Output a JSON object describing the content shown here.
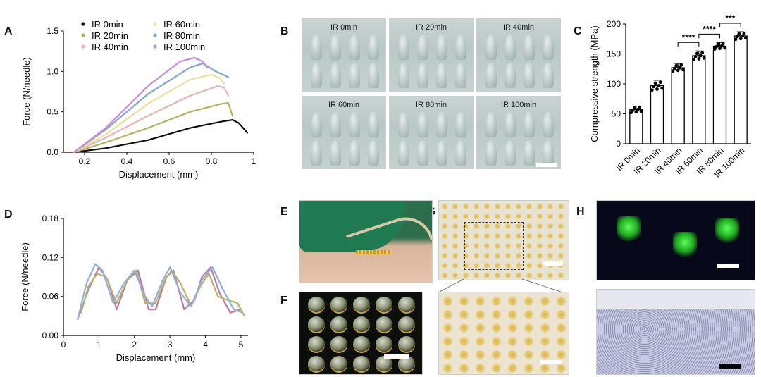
{
  "panels": {
    "A": "A",
    "B": "B",
    "C": "C",
    "D": "D",
    "E": "E",
    "F": "F",
    "G": "G",
    "H": "H"
  },
  "colors": {
    "IR 0min": "#111111",
    "IR 20min": "#b7b35c",
    "IR 40min": "#e9b3b3",
    "IR 60min": "#e9e09a",
    "IR 80min": "#7ea8d8",
    "IR 100min": "#c88bd8",
    "D1": "#c07aa6",
    "D2": "#b9b36a",
    "D3": "#8fb0d8"
  },
  "micro_labels": [
    "IR 0min",
    "IR 20min",
    "IR 40min",
    "IR 60min",
    "IR 80min",
    "IR 100min"
  ],
  "chart_data": [
    {
      "id": "A",
      "type": "line",
      "xlabel": "Displacement (mm)",
      "ylabel": "Force (N/needle)",
      "xlim": [
        0.1,
        1.0
      ],
      "ylim": [
        0.0,
        1.5
      ],
      "xticks": [
        0.2,
        0.4,
        0.6,
        0.8,
        1.0
      ],
      "yticks": [
        0.0,
        0.5,
        1.0,
        1.5
      ],
      "legend": "top-left, two columns",
      "series": [
        {
          "name": "IR 0min",
          "color_key": "IR 0min",
          "x": [
            0.15,
            0.3,
            0.5,
            0.7,
            0.85,
            0.9,
            0.93,
            0.97
          ],
          "y": [
            0.0,
            0.05,
            0.15,
            0.3,
            0.38,
            0.4,
            0.36,
            0.24
          ]
        },
        {
          "name": "IR 20min",
          "color_key": "IR 20min",
          "x": [
            0.15,
            0.3,
            0.5,
            0.7,
            0.85,
            0.88,
            0.9
          ],
          "y": [
            0.0,
            0.12,
            0.3,
            0.5,
            0.6,
            0.61,
            0.45
          ]
        },
        {
          "name": "IR 40min",
          "color_key": "IR 40min",
          "x": [
            0.15,
            0.3,
            0.5,
            0.7,
            0.83,
            0.86,
            0.88
          ],
          "y": [
            0.0,
            0.18,
            0.45,
            0.7,
            0.82,
            0.8,
            0.7
          ]
        },
        {
          "name": "IR 60min",
          "color_key": "IR 60min",
          "x": [
            0.15,
            0.3,
            0.5,
            0.7,
            0.8,
            0.84,
            0.86
          ],
          "y": [
            0.0,
            0.22,
            0.6,
            0.9,
            0.96,
            0.92,
            0.85
          ]
        },
        {
          "name": "IR 80min",
          "color_key": "IR 80min",
          "x": [
            0.15,
            0.3,
            0.5,
            0.7,
            0.76,
            0.82,
            0.88
          ],
          "y": [
            0.0,
            0.28,
            0.72,
            1.05,
            1.1,
            1.0,
            0.93
          ]
        },
        {
          "name": "IR 100min",
          "color_key": "IR 100min",
          "x": [
            0.15,
            0.3,
            0.5,
            0.65,
            0.72,
            0.76,
            0.78
          ],
          "y": [
            0.0,
            0.3,
            0.82,
            1.12,
            1.17,
            1.12,
            1.05
          ]
        }
      ]
    },
    {
      "id": "C",
      "type": "bar",
      "ylabel": "Compressive strength (MPa)",
      "categories": [
        "IR 0min",
        "IR 20min",
        "IR 40min",
        "IR 60min",
        "IR 80min",
        "IR 100min"
      ],
      "values": [
        57,
        97,
        127,
        147,
        163,
        180
      ],
      "errors": [
        6,
        9,
        7,
        8,
        6,
        7
      ],
      "ylim": [
        0,
        200
      ],
      "yticks": [
        0,
        50,
        100,
        150,
        200
      ],
      "significance": [
        {
          "from": 2,
          "to": 3,
          "label": "****"
        },
        {
          "from": 3,
          "to": 4,
          "label": "****"
        },
        {
          "from": 4,
          "to": 5,
          "label": "***"
        }
      ]
    },
    {
      "id": "D",
      "type": "line",
      "xlabel": "Displacement (mm)",
      "ylabel": "Force (N/needle)",
      "xlim": [
        0,
        5.2
      ],
      "ylim": [
        0.0,
        0.18
      ],
      "xticks": [
        0,
        1,
        2,
        3,
        4,
        5
      ],
      "yticks": [
        0.0,
        0.06,
        0.12,
        0.18
      ],
      "ytick_labels": [
        "0.00",
        "0.06",
        "0.12",
        "0.18"
      ],
      "series": [
        {
          "color_key": "D1",
          "x": [
            0.4,
            0.7,
            1.0,
            1.25,
            1.5,
            1.8,
            2.1,
            2.4,
            2.6,
            2.9,
            3.1,
            3.4,
            3.7,
            3.9,
            4.15,
            4.4,
            4.7,
            5.0
          ],
          "y": [
            0.025,
            0.07,
            0.105,
            0.085,
            0.04,
            0.085,
            0.1,
            0.04,
            0.04,
            0.09,
            0.1,
            0.04,
            0.055,
            0.09,
            0.105,
            0.065,
            0.035,
            0.04
          ]
        },
        {
          "color_key": "D2",
          "x": [
            0.5,
            0.7,
            0.95,
            1.2,
            1.5,
            1.8,
            2.05,
            2.3,
            2.6,
            2.85,
            3.05,
            3.3,
            3.6,
            3.85,
            4.1,
            4.35,
            4.6,
            4.9,
            5.1
          ],
          "y": [
            0.035,
            0.075,
            0.095,
            0.09,
            0.05,
            0.085,
            0.1,
            0.05,
            0.05,
            0.085,
            0.1,
            0.08,
            0.045,
            0.075,
            0.095,
            0.06,
            0.055,
            0.05,
            0.03
          ]
        },
        {
          "color_key": "D3",
          "x": [
            0.4,
            0.65,
            0.9,
            1.1,
            1.4,
            1.7,
            2.0,
            2.3,
            2.5,
            2.8,
            3.0,
            3.3,
            3.6,
            3.9,
            4.2,
            4.5,
            4.8,
            5.05
          ],
          "y": [
            0.025,
            0.08,
            0.11,
            0.1,
            0.05,
            0.08,
            0.1,
            0.06,
            0.045,
            0.085,
            0.105,
            0.065,
            0.045,
            0.085,
            0.105,
            0.07,
            0.04,
            0.035
          ]
        }
      ]
    }
  ]
}
